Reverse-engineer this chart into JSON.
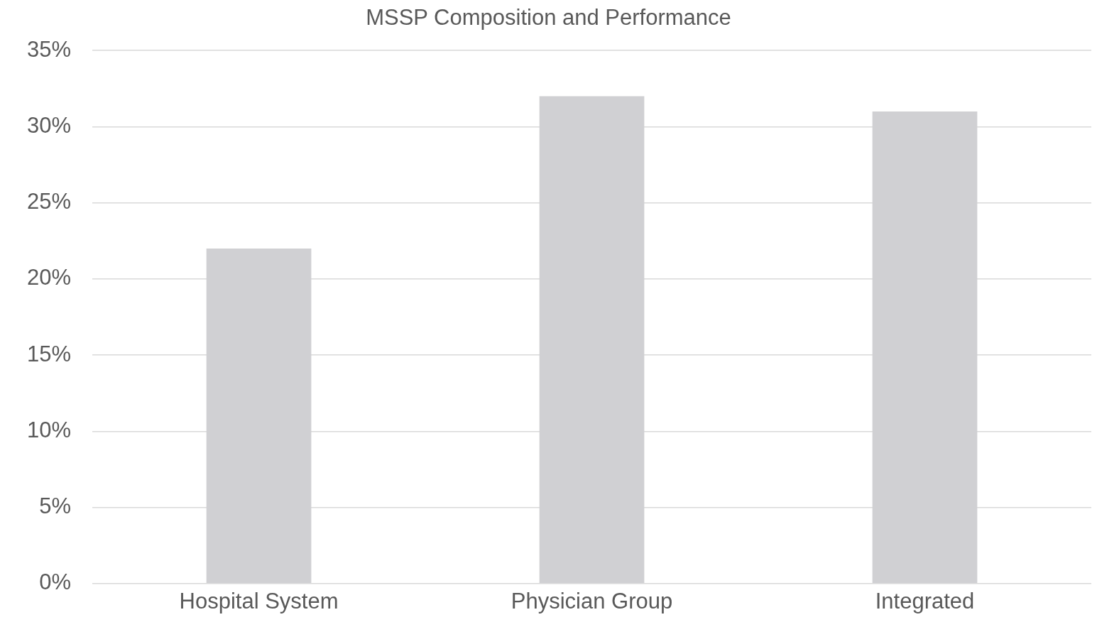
{
  "chart_data": {
    "type": "bar",
    "title": "MSSP Composition and Performance",
    "categories": [
      "Hospital System",
      "Physician Group",
      "Integrated"
    ],
    "values": [
      22,
      32,
      31
    ],
    "color": "#d0d0d3",
    "ylim": [
      0,
      35
    ],
    "yticks": [
      {
        "value": 0,
        "label": "0%"
      },
      {
        "value": 5,
        "label": "5%"
      },
      {
        "value": 10,
        "label": "10%"
      },
      {
        "value": 15,
        "label": "15%"
      },
      {
        "value": 20,
        "label": "20%"
      },
      {
        "value": 25,
        "label": "25%"
      },
      {
        "value": 30,
        "label": "30%"
      },
      {
        "value": 35,
        "label": "35%"
      }
    ],
    "grid": "y",
    "legend": false
  }
}
